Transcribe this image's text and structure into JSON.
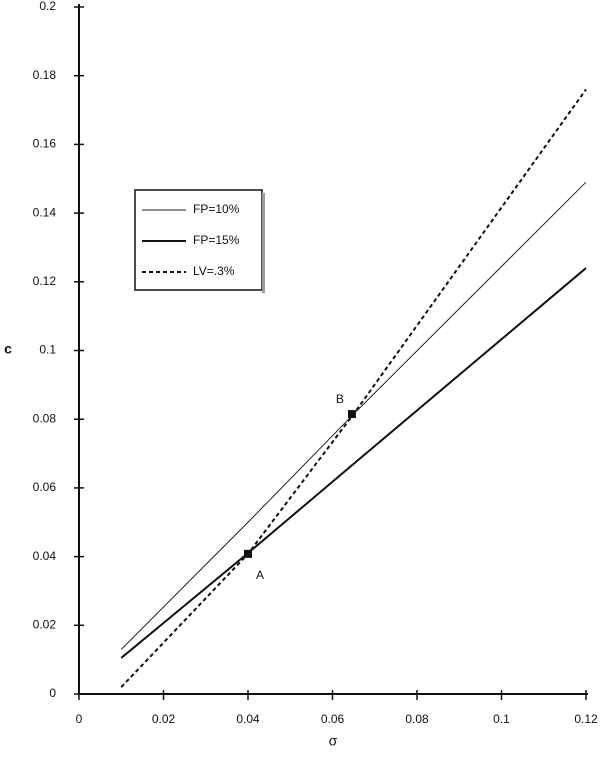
{
  "chart_data": {
    "type": "line",
    "x_label": "σ",
    "y_label": "c",
    "xlim": [
      0,
      0.12
    ],
    "xticks": [
      0,
      0.02,
      0.04,
      0.06,
      0.08,
      0.1,
      0.12
    ],
    "ylim": [
      0,
      0.2
    ],
    "yticks": [
      0,
      0.02,
      0.04,
      0.06,
      0.08,
      0.1,
      0.12,
      0.14,
      0.16,
      0.18,
      0.2
    ],
    "x": [
      0.01,
      0.04,
      0.065,
      0.12
    ],
    "series": [
      {
        "name": "FP=10%",
        "color": "#222222",
        "line_width": 1,
        "line_style": "solid",
        "values": [
          0.013,
          0.05,
          0.0815,
          0.149
        ]
      },
      {
        "name": "FP=15%",
        "color": "#111111",
        "line_width": 2,
        "line_style": "solid",
        "values": [
          0.0105,
          0.041,
          0.067,
          0.124
        ]
      },
      {
        "name": "LV=.3%",
        "color": "#111111",
        "line_width": 2,
        "line_style": "dashed",
        "values": [
          0.002,
          0.0408,
          0.0815,
          0.176
        ]
      }
    ],
    "points": [
      {
        "label": "A",
        "x": 0.04,
        "y": 0.0408
      },
      {
        "label": "B",
        "x": 0.0646,
        "y": 0.0815
      }
    ],
    "grid": false
  }
}
